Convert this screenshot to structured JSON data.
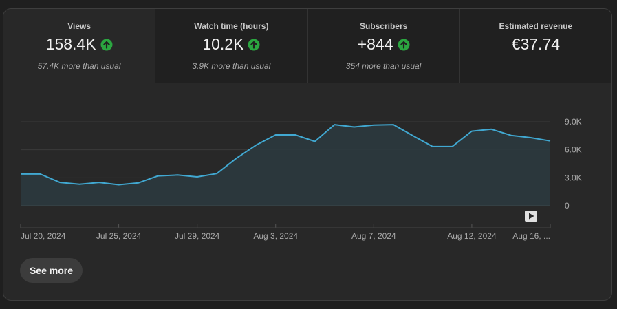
{
  "metrics": [
    {
      "label": "Views",
      "value": "158.4K",
      "trend": "up",
      "sub": "57.4K more than usual"
    },
    {
      "label": "Watch time (hours)",
      "value": "10.2K",
      "trend": "up",
      "sub": "3.9K more than usual"
    },
    {
      "label": "Subscribers",
      "value": "+844",
      "trend": "up",
      "sub": "354 more than usual"
    },
    {
      "label": "Estimated revenue",
      "value": "€37.74",
      "trend": "",
      "sub": ""
    }
  ],
  "icons": {
    "trend_up": "arrow-up-circle-icon",
    "play": "play-icon"
  },
  "colors": {
    "accent_line": "#41a8d1",
    "trend_up": "#2ba640",
    "background": "#282828"
  },
  "chart_data": {
    "type": "area",
    "series": [
      {
        "values": [
          3400,
          3400,
          2500,
          2300,
          2500,
          2250,
          2450,
          3200,
          3300,
          3100,
          3450,
          5100,
          6500,
          7600,
          7600,
          6900,
          8700,
          8450,
          8650,
          8700,
          7500,
          6350,
          6350,
          8000,
          8200,
          7550,
          7300,
          6950
        ]
      }
    ],
    "x_tick_labels": [
      "Jul 20, 2024",
      "Jul 25, 2024",
      "Jul 29, 2024",
      "Aug 3, 2024",
      "Aug 7, 2024",
      "Aug 12, 2024",
      "Aug 16, ..."
    ],
    "x_tick_indices": [
      0,
      5,
      9,
      13,
      18,
      23,
      27
    ],
    "y_ticks": [
      0,
      3000,
      6000,
      9000
    ],
    "y_tick_labels": [
      "0",
      "3.0K",
      "6.0K",
      "9.0K"
    ],
    "ylim": [
      0,
      9000
    ],
    "grid": true
  },
  "see_more_label": "See more"
}
